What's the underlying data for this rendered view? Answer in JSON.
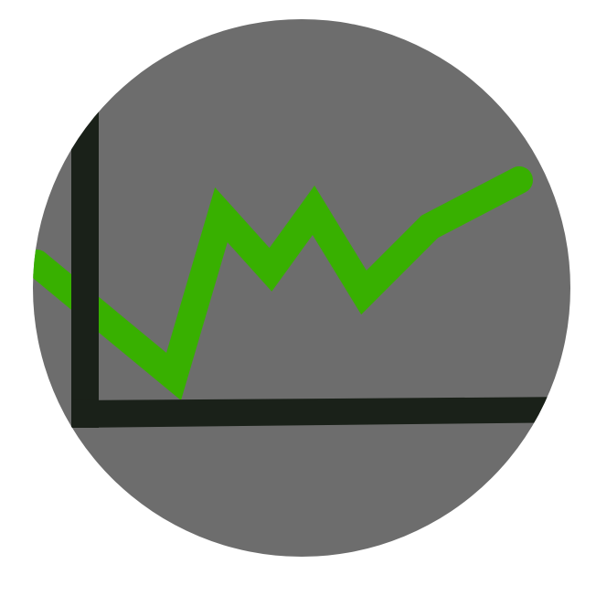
{
  "icon": {
    "name": "line-chart-icon",
    "colors": {
      "page_background": "#ffffff",
      "circle": "#6d6d6d",
      "axes": "#1a2119",
      "line": "#38b000"
    },
    "trend_shape": [
      "up-to-left-edge",
      "low",
      "high",
      "mid",
      "high",
      "low",
      "mid",
      "high"
    ]
  }
}
